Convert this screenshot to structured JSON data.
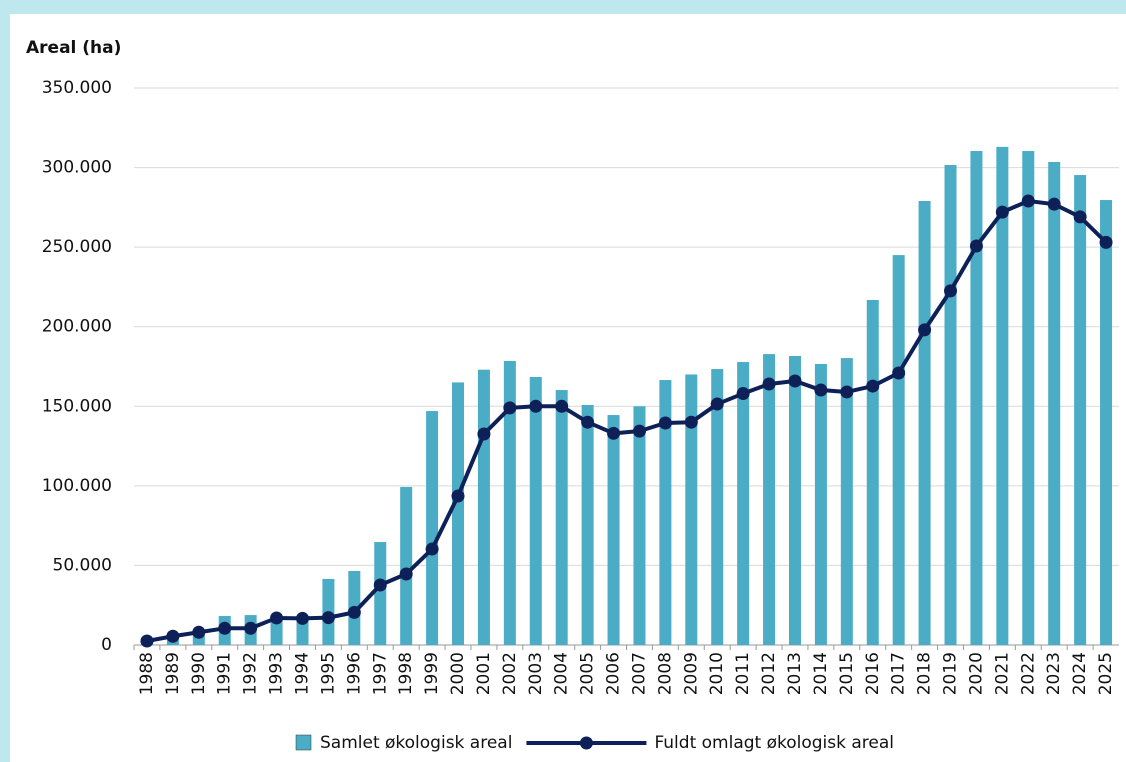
{
  "chart_data": {
    "type": "bar",
    "title": "Areal (ha)",
    "categories": [
      "1988",
      "1989",
      "1990",
      "1991",
      "1992",
      "1993",
      "1994",
      "1995",
      "1996",
      "1997",
      "1998",
      "1999",
      "2000",
      "2001",
      "2002",
      "2003",
      "2004",
      "2005",
      "2006",
      "2007",
      "2008",
      "2009",
      "2010",
      "2011",
      "2012",
      "2013",
      "2014",
      "2015",
      "2016",
      "2017",
      "2018",
      "2019",
      "2020",
      "2021",
      "2022",
      "2023",
      "2024",
      "2025"
    ],
    "series": [
      {
        "name": "Samlet økologisk areal",
        "type": "bar",
        "color": "#4bacc6",
        "values": [
          1000,
          5000,
          8000,
          18200,
          18800,
          18000,
          17000,
          41500,
          46500,
          64700,
          99300,
          147000,
          165000,
          173000,
          178500,
          168400,
          160200,
          150800,
          144500,
          150000,
          166500,
          170000,
          173400,
          177800,
          182800,
          181600,
          176600,
          180300,
          216800,
          245000,
          279000,
          301600,
          310400,
          313000,
          310400,
          303500,
          295300,
          279600
        ]
      },
      {
        "name": "Fuldt omlagt økologisk areal",
        "type": "line",
        "color": "#0d2158",
        "values": [
          2500,
          5500,
          8000,
          10500,
          10500,
          17000,
          16700,
          17200,
          20500,
          37700,
          44600,
          60300,
          93600,
          132600,
          149000,
          150000,
          150000,
          140000,
          133000,
          134400,
          139500,
          140000,
          151400,
          158000,
          164000,
          165900,
          160200,
          159000,
          162700,
          170900,
          198000,
          222500,
          250700,
          272000,
          279000,
          277000,
          269000,
          253000
        ]
      }
    ],
    "ylim": [
      0,
      350000
    ],
    "yticks": [
      0,
      {
        "value": 50000,
        "label": "50.000"
      },
      {
        "value": 100000,
        "label": "100.000"
      },
      {
        "value": 150000,
        "label": "150.000"
      },
      {
        "value": 200000,
        "label": "200.000"
      },
      {
        "value": 250000,
        "label": "250.000"
      },
      {
        "value": 300000,
        "label": "300.000"
      },
      {
        "value": 350000,
        "label": "350.000"
      }
    ],
    "grid": true,
    "legend": "bottom"
  }
}
